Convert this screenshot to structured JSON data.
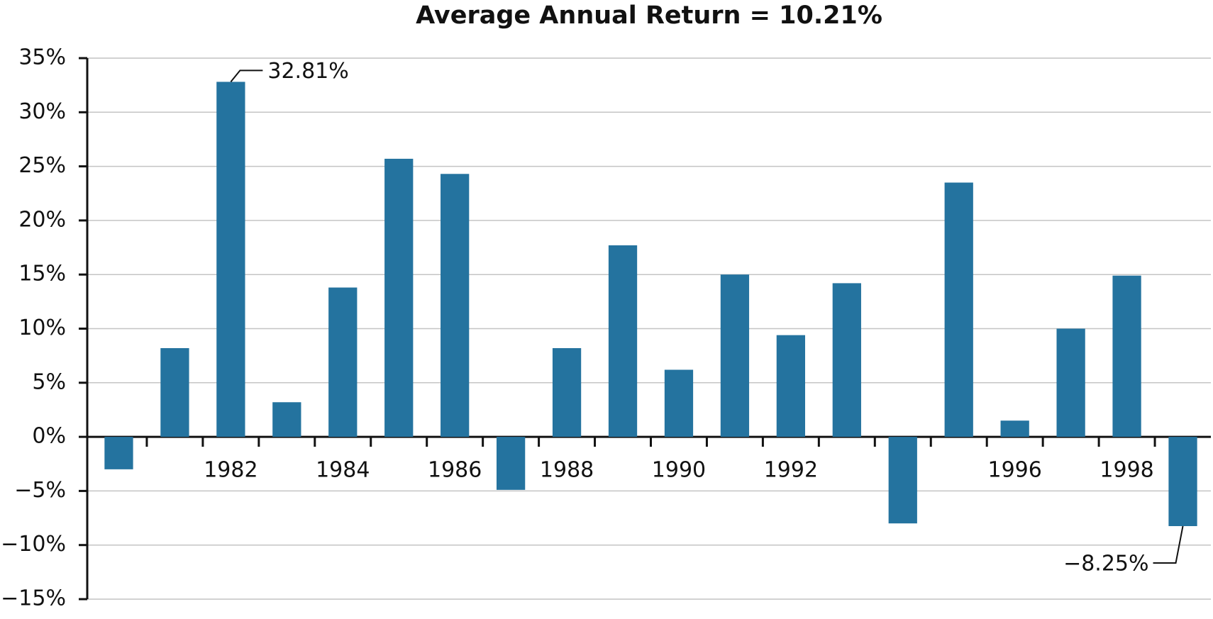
{
  "chart_data": {
    "type": "bar",
    "title": "Average Annual Return = 10.21%",
    "categories": [
      null,
      null,
      "1982",
      null,
      "1984",
      null,
      "1986",
      null,
      "1988",
      null,
      "1990",
      null,
      "1992",
      null,
      null,
      null,
      "1996",
      null,
      "1998",
      null
    ],
    "values": [
      -3.0,
      8.2,
      32.81,
      3.2,
      13.8,
      25.7,
      24.3,
      -4.9,
      8.2,
      17.7,
      6.2,
      15.0,
      9.4,
      14.2,
      -8.0,
      23.5,
      1.5,
      10.0,
      14.9,
      -8.25
    ],
    "value_labels": [
      null,
      null,
      "32.81%",
      null,
      null,
      null,
      null,
      null,
      null,
      null,
      null,
      null,
      null,
      null,
      null,
      null,
      null,
      null,
      null,
      "−8.25%"
    ],
    "color": "#24739f",
    "ylim": [
      -15,
      35
    ],
    "yticks": [
      {
        "value": -15,
        "label": "−15%"
      },
      {
        "value": -10,
        "label": "−10%"
      },
      {
        "value": -5,
        "label": "−5%"
      },
      {
        "value": 0,
        "label": "0%"
      },
      {
        "value": 5,
        "label": "5%"
      },
      {
        "value": 10,
        "label": "10%"
      },
      {
        "value": 15,
        "label": "15%"
      },
      {
        "value": 20,
        "label": "20%"
      },
      {
        "value": 25,
        "label": "25%"
      },
      {
        "value": 30,
        "label": "30%"
      },
      {
        "value": 35,
        "label": "35%"
      }
    ],
    "grid": true
  }
}
